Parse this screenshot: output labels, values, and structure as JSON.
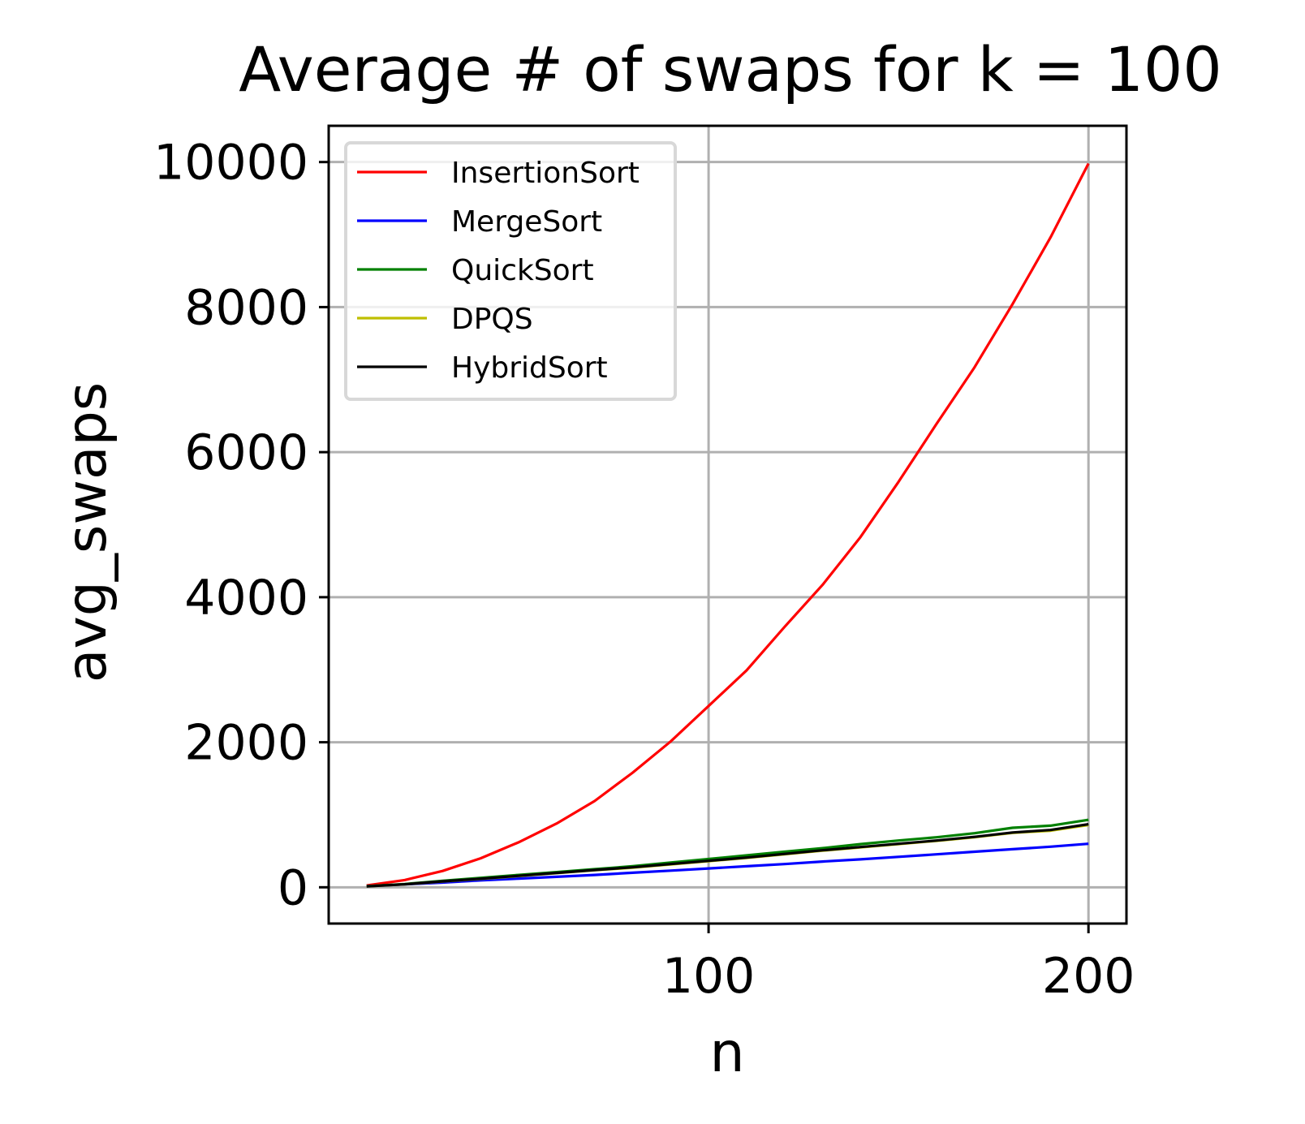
{
  "chart_data": {
    "type": "line",
    "title": "Average # of swaps for k = 100",
    "xlabel": "n",
    "ylabel": "avg_swaps",
    "xlim": [
      0,
      210
    ],
    "ylim": [
      -500,
      10500
    ],
    "xticks": [
      100,
      200
    ],
    "yticks": [
      0,
      2000,
      4000,
      6000,
      8000,
      10000
    ],
    "grid": true,
    "legend_position": "upper left",
    "x": [
      10,
      20,
      30,
      40,
      50,
      60,
      70,
      80,
      90,
      100,
      110,
      120,
      130,
      140,
      150,
      160,
      170,
      180,
      190,
      200
    ],
    "series": [
      {
        "name": "InsertionSort",
        "color": "#ff0000",
        "values": [
          25,
          100,
          225,
          400,
          620,
          880,
          1190,
          1580,
          2010,
          2500,
          2990,
          3590,
          4170,
          4830,
          5590,
          6390,
          7170,
          8040,
          8960,
          9980
        ]
      },
      {
        "name": "MergeSort",
        "color": "#0000ff",
        "values": [
          15,
          40,
          65,
          95,
          120,
          145,
          170,
          200,
          230,
          260,
          290,
          320,
          355,
          385,
          420,
          455,
          490,
          525,
          560,
          600
        ]
      },
      {
        "name": "QuickSort",
        "color": "#008000",
        "values": [
          15,
          45,
          90,
          130,
          170,
          210,
          250,
          290,
          340,
          390,
          440,
          490,
          540,
          595,
          645,
          690,
          745,
          820,
          850,
          930
        ]
      },
      {
        "name": "DPQS",
        "color": "#bfbf00",
        "values": [
          12,
          40,
          80,
          115,
          155,
          195,
          235,
          270,
          315,
          360,
          405,
          455,
          505,
          550,
          595,
          640,
          690,
          750,
          780,
          860
        ]
      },
      {
        "name": "HybridSort",
        "color": "#000000",
        "values": [
          12,
          42,
          82,
          118,
          158,
          198,
          238,
          275,
          320,
          365,
          410,
          460,
          510,
          555,
          600,
          645,
          695,
          755,
          790,
          870
        ]
      }
    ]
  }
}
